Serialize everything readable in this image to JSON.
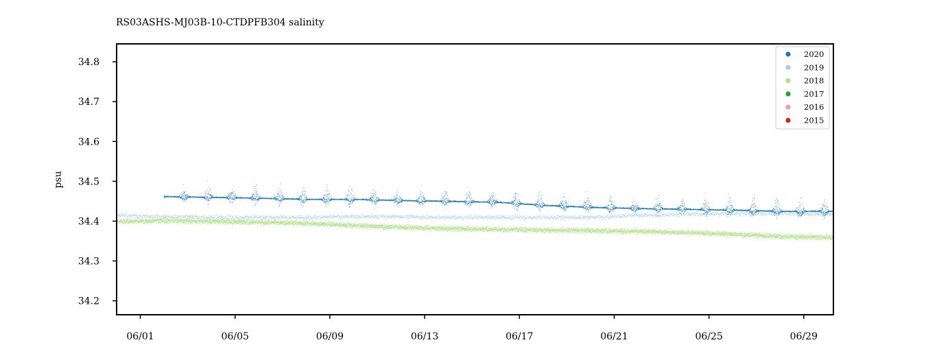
{
  "chart_data": {
    "type": "scatter",
    "title": "RS03ASHS-MJ03B-10-CTDPFB304 salinity",
    "xlabel": "",
    "ylabel": "psu",
    "x_range": [
      "05/31 00:00",
      "06/30 06:00"
    ],
    "ylim": [
      34.165,
      34.845
    ],
    "x_ticks": [
      "06/01",
      "06/05",
      "06/09",
      "06/13",
      "06/17",
      "06/21",
      "06/25",
      "06/29"
    ],
    "y_ticks": [
      "34.2",
      "34.3",
      "34.4",
      "34.5",
      "34.6",
      "34.7",
      "34.8"
    ],
    "grid": false,
    "legend_position": "top-right",
    "legend": [
      {
        "name": "2020",
        "color": "#1f78b4"
      },
      {
        "name": "2019",
        "color": "#a6cee3"
      },
      {
        "name": "2018",
        "color": "#b2df8a"
      },
      {
        "name": "2017",
        "color": "#33a02c"
      },
      {
        "name": "2016",
        "color": "#fb9a99"
      },
      {
        "name": "2015",
        "color": "#e31a1c"
      }
    ],
    "series": [
      {
        "name": "2018",
        "color": "#b2df8a",
        "x": [
          "05/31",
          "06/02",
          "06/04",
          "06/06",
          "06/08",
          "06/10",
          "06/12",
          "06/14",
          "06/16",
          "06/18",
          "06/20",
          "06/22",
          "06/24",
          "06/26",
          "06/28",
          "06/30"
        ],
        "y": [
          34.4,
          34.402,
          34.4,
          34.398,
          34.395,
          34.39,
          34.385,
          34.382,
          34.38,
          34.378,
          34.377,
          34.375,
          34.372,
          34.368,
          34.362,
          34.36
        ]
      },
      {
        "name": "2019",
        "color": "#a6cee3",
        "x": [
          "05/31",
          "06/02",
          "06/04",
          "06/06",
          "06/08",
          "06/10",
          "06/12",
          "06/14",
          "06/16",
          "06/18",
          "06/20",
          "06/22",
          "06/24",
          "06/26",
          "06/28",
          "06/30"
        ],
        "y": [
          34.415,
          34.412,
          34.41,
          34.41,
          34.41,
          34.412,
          34.412,
          34.41,
          34.41,
          34.41,
          34.41,
          34.415,
          34.418,
          34.42,
          34.42,
          34.418
        ]
      },
      {
        "name": "2020",
        "color": "#1f78b4",
        "x": [
          "06/02",
          "06/04",
          "06/06",
          "06/08",
          "06/10",
          "06/12",
          "06/14",
          "06/16",
          "06/18",
          "06/20",
          "06/22",
          "06/24",
          "06/26",
          "06/28",
          "06/30"
        ],
        "y": [
          34.462,
          34.46,
          34.458,
          34.455,
          34.455,
          34.452,
          34.45,
          34.448,
          34.44,
          34.435,
          34.432,
          34.43,
          34.428,
          34.425,
          34.425
        ]
      }
    ]
  }
}
